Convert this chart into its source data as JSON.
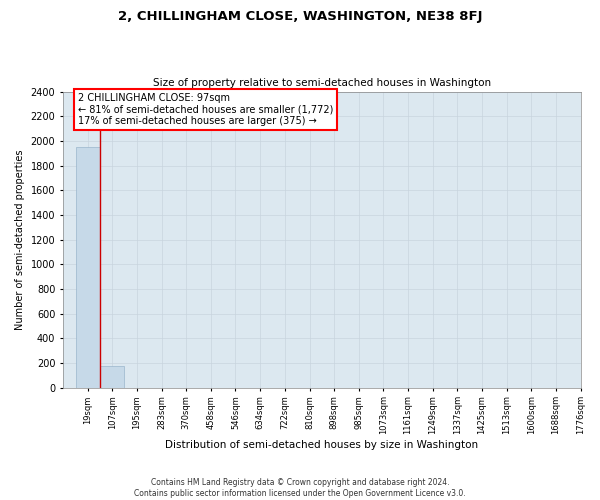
{
  "title": "2, CHILLINGHAM CLOSE, WASHINGTON, NE38 8FJ",
  "subtitle": "Size of property relative to semi-detached houses in Washington",
  "xlabel": "Distribution of semi-detached houses by size in Washington",
  "ylabel": "Number of semi-detached properties",
  "footer_line1": "Contains HM Land Registry data © Crown copyright and database right 2024.",
  "footer_line2": "Contains public sector information licensed under the Open Government Licence v3.0.",
  "annotation_line1": "2 CHILLINGHAM CLOSE: 97sqm",
  "annotation_line2": "← 81% of semi-detached houses are smaller (1,772)",
  "annotation_line3": "17% of semi-detached houses are larger (375) →",
  "categories": [
    "19sqm",
    "107sqm",
    "195sqm",
    "283sqm",
    "370sqm",
    "458sqm",
    "546sqm",
    "634sqm",
    "722sqm",
    "810sqm",
    "898sqm",
    "985sqm",
    "1073sqm",
    "1161sqm",
    "1249sqm",
    "1337sqm",
    "1425sqm",
    "1513sqm",
    "1600sqm",
    "1688sqm",
    "1776sqm"
  ],
  "bin_edges": [
    19,
    107,
    195,
    283,
    370,
    458,
    546,
    634,
    722,
    810,
    898,
    985,
    1073,
    1161,
    1249,
    1337,
    1425,
    1513,
    1600,
    1688,
    1776
  ],
  "values": [
    1950,
    175,
    0,
    0,
    0,
    0,
    0,
    0,
    0,
    0,
    0,
    0,
    0,
    0,
    0,
    0,
    0,
    0,
    0,
    0,
    0
  ],
  "bar_color": "#c6d9e8",
  "bar_edge_color": "#9ab5cc",
  "marker_color": "#cc0000",
  "grid_color": "#c8d4de",
  "background_color": "#dce8f0",
  "ylim": [
    0,
    2400
  ],
  "yticks": [
    0,
    200,
    400,
    600,
    800,
    1000,
    1200,
    1400,
    1600,
    1800,
    2000,
    2200,
    2400
  ]
}
